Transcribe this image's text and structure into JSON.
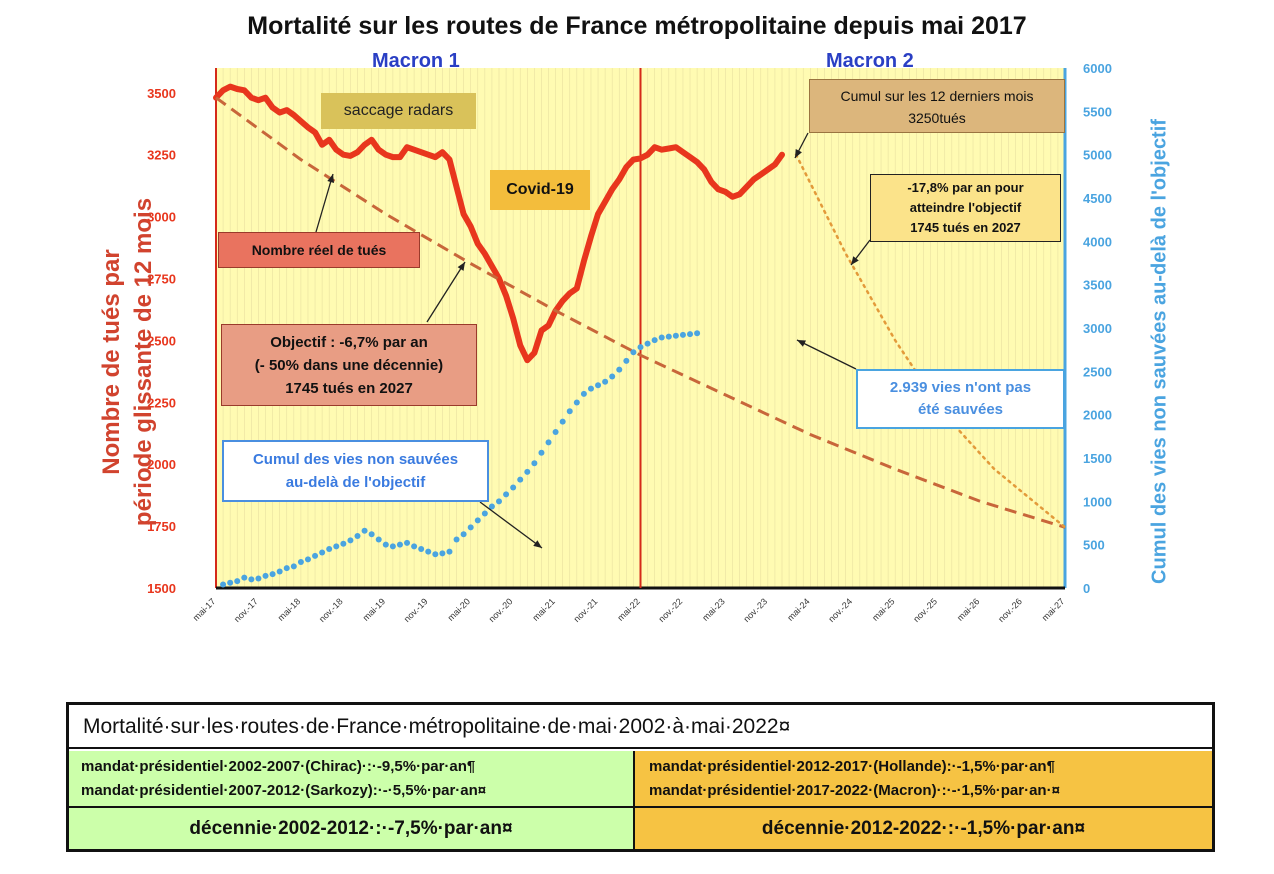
{
  "title": "Mortalité sur les routes de France métropolitaine depuis mai 2017",
  "mandates": {
    "m1": "Macron 1",
    "m2": "Macron 2"
  },
  "annotations": {
    "radars": "saccage radars",
    "covid": "Covid-19",
    "nombre_reel": "Nombre réel de tués",
    "objectif": [
      "Objectif : -6,7% par an",
      "(- 50% dans une décennie)",
      "1745 tués en 2027"
    ],
    "cumul12": [
      "Cumul sur les 12 derniers mois",
      "3250tués"
    ],
    "rate178": [
      "-17,8% par an pour",
      "atteindre l'objectif",
      "1745 tués en 2027"
    ],
    "vies2939": [
      "2.939 vies n'ont pas",
      "été sauvées"
    ],
    "cumul_vies": [
      "Cumul des vies non sauvées",
      "au-delà de l'objectif"
    ]
  },
  "chart_data": {
    "type": "line",
    "title": "Mortalité sur les routes de France métropolitaine depuis mai 2017",
    "ylabel_left": [
      "Nombre de tués par",
      "période glissante de 12 mois"
    ],
    "ylabel_right": "Cumul des vies non sauvées au-delà de l'objectif",
    "x_tick_labels": [
      "mai-17",
      "nov.-17",
      "mai-18",
      "nov.-18",
      "mai-19",
      "nov.-19",
      "mai-20",
      "nov.-20",
      "mai-21",
      "nov.-21",
      "mai-22",
      "nov.-22",
      "mai-23",
      "nov.-23",
      "mai-24",
      "nov.-24",
      "mai-25",
      "nov.-25",
      "mai-26",
      "nov.-26",
      "mai-27"
    ],
    "y_left_ticks": [
      1500,
      1750,
      2000,
      2250,
      2500,
      2750,
      3000,
      3250,
      3500
    ],
    "y_left_range": [
      1500,
      3600
    ],
    "y_right_ticks": [
      0,
      500,
      1000,
      1500,
      2000,
      2500,
      3000,
      3500,
      4000,
      4500,
      5000,
      5500,
      6000
    ],
    "y_right_range": [
      0,
      6000
    ],
    "x_range_months": [
      0,
      120
    ],
    "mandate_boundary_month": 60,
    "grid": "vertical month lines",
    "colors": {
      "actual": "#e8361d",
      "objective": "#c8663a",
      "required": "#e39a3a",
      "cumul": "#4aa4e0",
      "plot_bg": "#fffbb2",
      "mandate": "#d42a1a",
      "right_axis": "#4aa4e0",
      "left_axis_text": "#e8361d"
    },
    "series": [
      {
        "name": "Nombre réel de tués",
        "axis": "left",
        "style": "solid",
        "points": [
          [
            0,
            3480
          ],
          [
            1,
            3510
          ],
          [
            2,
            3525
          ],
          [
            3,
            3515
          ],
          [
            4,
            3510
          ],
          [
            5,
            3480
          ],
          [
            6,
            3470
          ],
          [
            7,
            3480
          ],
          [
            8,
            3440
          ],
          [
            9,
            3420
          ],
          [
            10,
            3430
          ],
          [
            11,
            3410
          ],
          [
            12,
            3385
          ],
          [
            13,
            3360
          ],
          [
            14,
            3340
          ],
          [
            15,
            3290
          ],
          [
            16,
            3310
          ],
          [
            17,
            3270
          ],
          [
            18,
            3250
          ],
          [
            19,
            3245
          ],
          [
            20,
            3260
          ],
          [
            21,
            3290
          ],
          [
            22,
            3310
          ],
          [
            23,
            3270
          ],
          [
            24,
            3250
          ],
          [
            25,
            3240
          ],
          [
            26,
            3240
          ],
          [
            27,
            3280
          ],
          [
            28,
            3270
          ],
          [
            29,
            3260
          ],
          [
            30,
            3250
          ],
          [
            31,
            3240
          ],
          [
            32,
            3260
          ],
          [
            33,
            3230
          ],
          [
            34,
            3120
          ],
          [
            35,
            3010
          ],
          [
            36,
            2960
          ],
          [
            37,
            2890
          ],
          [
            38,
            2850
          ],
          [
            39,
            2800
          ],
          [
            40,
            2750
          ],
          [
            41,
            2680
          ],
          [
            42,
            2590
          ],
          [
            43,
            2480
          ],
          [
            44,
            2420
          ],
          [
            45,
            2450
          ],
          [
            46,
            2540
          ],
          [
            47,
            2560
          ],
          [
            48,
            2620
          ],
          [
            49,
            2660
          ],
          [
            50,
            2690
          ],
          [
            51,
            2710
          ],
          [
            52,
            2820
          ],
          [
            53,
            2920
          ],
          [
            54,
            3010
          ],
          [
            55,
            3060
          ],
          [
            56,
            3110
          ],
          [
            57,
            3150
          ],
          [
            58,
            3200
          ],
          [
            59,
            3230
          ],
          [
            60,
            3235
          ],
          [
            61,
            3250
          ],
          [
            62,
            3280
          ],
          [
            63,
            3270
          ],
          [
            64,
            3275
          ],
          [
            65,
            3280
          ],
          [
            66,
            3260
          ],
          [
            67,
            3240
          ],
          [
            68,
            3220
          ],
          [
            69,
            3190
          ],
          [
            70,
            3140
          ],
          [
            71,
            3110
          ],
          [
            72,
            3100
          ],
          [
            73,
            3080
          ],
          [
            74,
            3090
          ],
          [
            75,
            3120
          ],
          [
            76,
            3150
          ],
          [
            77,
            3170
          ],
          [
            78,
            3190
          ],
          [
            79,
            3210
          ],
          [
            80,
            3250
          ]
        ]
      },
      {
        "name": "Objectif : -6,7% par an",
        "axis": "left",
        "style": "dashed",
        "points": [
          [
            0,
            3480
          ],
          [
            12,
            3230
          ],
          [
            24,
            3010
          ],
          [
            36,
            2810
          ],
          [
            48,
            2620
          ],
          [
            60,
            2440
          ],
          [
            72,
            2280
          ],
          [
            84,
            2120
          ],
          [
            96,
            1980
          ],
          [
            108,
            1850
          ],
          [
            120,
            1745
          ]
        ]
      },
      {
        "name": "-17,8% par an pour atteindre l'objectif",
        "axis": "left",
        "style": "dotted",
        "points": [
          [
            82,
            3250
          ],
          [
            89,
            2850
          ],
          [
            96,
            2500
          ],
          [
            103,
            2200
          ],
          [
            110,
            1980
          ],
          [
            120,
            1745
          ]
        ]
      },
      {
        "name": "Cumul des vies non sauvées au-delà de l'objectif",
        "axis": "right",
        "style": "dots",
        "points": [
          [
            1,
            40
          ],
          [
            2,
            60
          ],
          [
            3,
            80
          ],
          [
            4,
            120
          ],
          [
            5,
            100
          ],
          [
            6,
            110
          ],
          [
            7,
            140
          ],
          [
            8,
            160
          ],
          [
            9,
            190
          ],
          [
            10,
            230
          ],
          [
            11,
            250
          ],
          [
            12,
            300
          ],
          [
            13,
            330
          ],
          [
            14,
            370
          ],
          [
            15,
            410
          ],
          [
            16,
            450
          ],
          [
            17,
            480
          ],
          [
            18,
            510
          ],
          [
            19,
            550
          ],
          [
            20,
            600
          ],
          [
            21,
            660
          ],
          [
            22,
            620
          ],
          [
            23,
            560
          ],
          [
            24,
            500
          ],
          [
            25,
            480
          ],
          [
            26,
            500
          ],
          [
            27,
            520
          ],
          [
            28,
            480
          ],
          [
            29,
            450
          ],
          [
            30,
            420
          ],
          [
            31,
            390
          ],
          [
            32,
            400
          ],
          [
            33,
            420
          ],
          [
            34,
            560
          ],
          [
            35,
            620
          ],
          [
            36,
            700
          ],
          [
            37,
            780
          ],
          [
            38,
            860
          ],
          [
            39,
            940
          ],
          [
            40,
            1000
          ],
          [
            41,
            1080
          ],
          [
            42,
            1160
          ],
          [
            43,
            1250
          ],
          [
            44,
            1340
          ],
          [
            45,
            1440
          ],
          [
            46,
            1560
          ],
          [
            47,
            1680
          ],
          [
            48,
            1800
          ],
          [
            49,
            1920
          ],
          [
            50,
            2040
          ],
          [
            51,
            2140
          ],
          [
            52,
            2240
          ],
          [
            53,
            2300
          ],
          [
            54,
            2340
          ],
          [
            55,
            2380
          ],
          [
            56,
            2440
          ],
          [
            57,
            2520
          ],
          [
            58,
            2620
          ],
          [
            59,
            2720
          ],
          [
            60,
            2780
          ],
          [
            61,
            2820
          ],
          [
            62,
            2860
          ],
          [
            63,
            2890
          ],
          [
            64,
            2900
          ],
          [
            65,
            2910
          ],
          [
            66,
            2920
          ],
          [
            67,
            2930
          ],
          [
            68,
            2939
          ]
        ]
      }
    ],
    "annotations": [
      "saccage radars",
      "Covid-19",
      "Nombre réel de tués",
      "Objectif : -6,7% par an (- 50% dans une décennie) 1745 tués en 2027",
      "Cumul sur les 12 derniers mois 3250tués",
      "-17,8% par an pour atteindre l'objectif 1745 tués en 2027",
      "2.939 vies n'ont pas été sauvées",
      "Cumul des vies non sauvées au-delà de l'objectif"
    ]
  },
  "table": {
    "title": "Mortalité·sur·les·routes·de·France·métropolitaine·de·mai·2002·à·mai·2022¤",
    "left_lines": [
      "mandat·présidentiel·2002-2007·(Chirac)·:·-9,5%·par·an¶",
      "mandat·présidentiel·2007-2012·(Sarkozy):·-·5,5%·par·an¤"
    ],
    "right_lines": [
      "mandat·présidentiel·2012-2017·(Hollande):·-1,5%·par·an¶",
      "mandat·présidentiel·2017-2022·(Macron)·:·-·1,5%·par·an·¤"
    ],
    "decade_left": "décennie·2002-2012·:·-7,5%·par·an¤",
    "decade_right": "décennie·2012-2022·:·-1,5%·par·an¤"
  }
}
